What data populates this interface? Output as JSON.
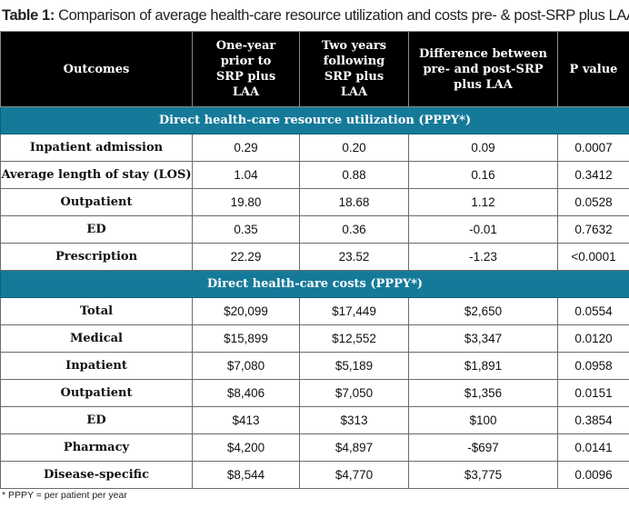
{
  "title": {
    "label": "Table 1:",
    "text": "Comparison of average health-care resource utilization and costs pre- & post-SRP plus LAA"
  },
  "table": {
    "headers": [
      "Outcomes",
      "One-year prior to SRP plus LAA",
      "Two years following SRP plus LAA",
      "Difference between pre- and post-SRP plus LAA",
      "P value"
    ],
    "sections": [
      {
        "heading": "Direct health-care resource utilization (PPPY*)",
        "rows": [
          [
            "Inpatient admission",
            "0.29",
            "0.20",
            "0.09",
            "0.0007"
          ],
          [
            "Average length of stay (LOS)",
            "1.04",
            "0.88",
            "0.16",
            "0.3412"
          ],
          [
            "Outpatient",
            "19.80",
            "18.68",
            "1.12",
            "0.0528"
          ],
          [
            "ED",
            "0.35",
            "0.36",
            "-0.01",
            "0.7632"
          ],
          [
            "Prescription",
            "22.29",
            "23.52",
            "-1.23",
            "<0.0001"
          ]
        ]
      },
      {
        "heading": "Direct health-care costs (PPPY*)",
        "rows": [
          [
            "Total",
            "$20,099",
            "$17,449",
            "$2,650",
            "0.0554"
          ],
          [
            "Medical",
            "$15,899",
            "$12,552",
            "$3,347",
            "0.0120"
          ],
          [
            "Inpatient",
            "$7,080",
            "$5,189",
            "$1,891",
            "0.0958"
          ],
          [
            "Outpatient",
            "$8,406",
            "$7,050",
            "$1,356",
            "0.0151"
          ],
          [
            "ED",
            "$413",
            "$313",
            "$100",
            "0.3854"
          ],
          [
            "Pharmacy",
            "$4,200",
            "$4,897",
            "-$697",
            "0.0141"
          ],
          [
            "Disease-specific",
            "$8,544",
            "$4,770",
            "$3,775",
            "0.0096"
          ]
        ]
      }
    ]
  },
  "footnote": "* PPPY = per patient per year",
  "colors": {
    "header_bg": "#000000",
    "section_bg": "#157a99"
  }
}
